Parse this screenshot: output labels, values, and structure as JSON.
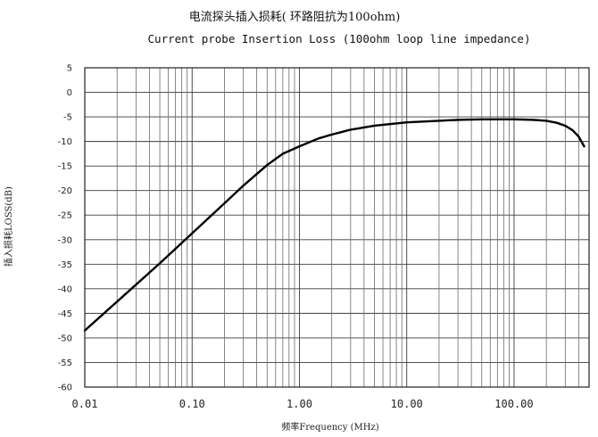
{
  "chart_data": {
    "type": "line",
    "title": "电流探头插入损耗( 环路阻抗为100ohm)",
    "subtitle": "Current probe Insertion Loss  (100ohm loop line impedance)",
    "xlabel": "频率Frequency (MHz)",
    "ylabel": "插入损耗LOSS(dB)",
    "x_scale": "log",
    "xlim": [
      0.01,
      500
    ],
    "ylim": [
      -60,
      5
    ],
    "x_ticks": [
      {
        "value": 0.01,
        "label": "0.01"
      },
      {
        "value": 0.1,
        "label": "0.10"
      },
      {
        "value": 1,
        "label": "1.00"
      },
      {
        "value": 10,
        "label": "10.00"
      },
      {
        "value": 100,
        "label": "100.00"
      }
    ],
    "y_ticks": [
      {
        "value": 5,
        "label": "5"
      },
      {
        "value": 0,
        "label": "0"
      },
      {
        "value": -5,
        "label": "-5"
      },
      {
        "value": -10,
        "label": "-10"
      },
      {
        "value": -15,
        "label": "-15"
      },
      {
        "value": -20,
        "label": "-20"
      },
      {
        "value": -25,
        "label": "-25"
      },
      {
        "value": -30,
        "label": "-30"
      },
      {
        "value": -35,
        "label": "-35"
      },
      {
        "value": -40,
        "label": "-40"
      },
      {
        "value": -45,
        "label": "-45"
      },
      {
        "value": -50,
        "label": "-50"
      },
      {
        "value": -55,
        "label": "-55"
      },
      {
        "value": -60,
        "label": "-60"
      }
    ],
    "grid": true,
    "series": [
      {
        "x": [
          0.01,
          0.02,
          0.05,
          0.1,
          0.2,
          0.3,
          0.5,
          0.7,
          1,
          1.5,
          2,
          3,
          5,
          10,
          20,
          30,
          50,
          100,
          150,
          200,
          250,
          300,
          350,
          400,
          450
        ],
        "y": [
          -48.5,
          -42.6,
          -34.8,
          -28.7,
          -22.6,
          -19.0,
          -14.8,
          -12.5,
          -11.0,
          -9.4,
          -8.6,
          -7.6,
          -6.8,
          -6.1,
          -5.8,
          -5.6,
          -5.5,
          -5.5,
          -5.6,
          -5.8,
          -6.2,
          -6.8,
          -7.7,
          -9.0,
          -11.0
        ]
      }
    ]
  }
}
